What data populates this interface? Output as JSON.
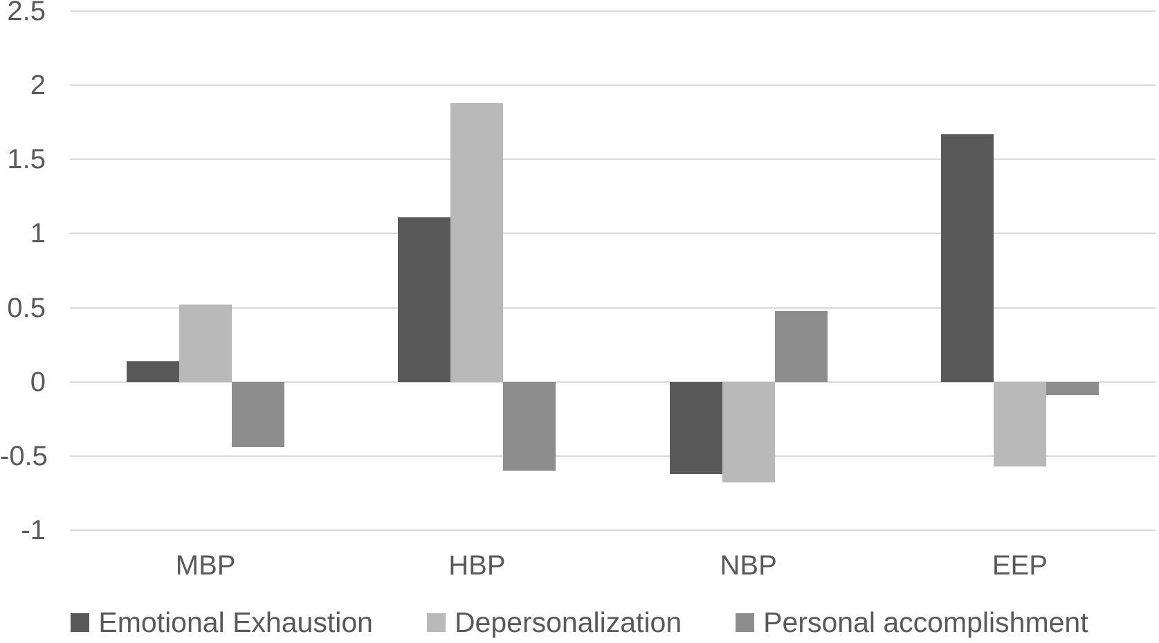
{
  "chart_data": {
    "type": "bar",
    "title": "",
    "xlabel": "",
    "ylabel": "",
    "categories": [
      "MBP",
      "HBP",
      "NBP",
      "EEP"
    ],
    "series": [
      {
        "name": "Emotional Exhaustion",
        "color": "#595959",
        "values": [
          0.14,
          1.11,
          -0.62,
          1.67
        ]
      },
      {
        "name": "Depersonalization",
        "color": "#b9b9b9",
        "values": [
          0.52,
          1.88,
          -0.68,
          -0.57
        ]
      },
      {
        "name": "Personal accomplishment",
        "color": "#8d8d8d",
        "values": [
          -0.44,
          -0.6,
          0.48,
          -0.09
        ]
      }
    ],
    "ylim": [
      -1,
      2.5
    ],
    "yticks": [
      2.5,
      2,
      1.5,
      1,
      0.5,
      0,
      -0.5,
      -1
    ],
    "ytick_labels": [
      "2.5",
      "2",
      "1.5",
      "1",
      "0.5",
      "0",
      "-0.5",
      "-1"
    ],
    "grid": true,
    "legend_position": "bottom"
  },
  "colors": {
    "background": "#ffffff",
    "gridline": "#d9d9d9",
    "text": "#595959"
  }
}
